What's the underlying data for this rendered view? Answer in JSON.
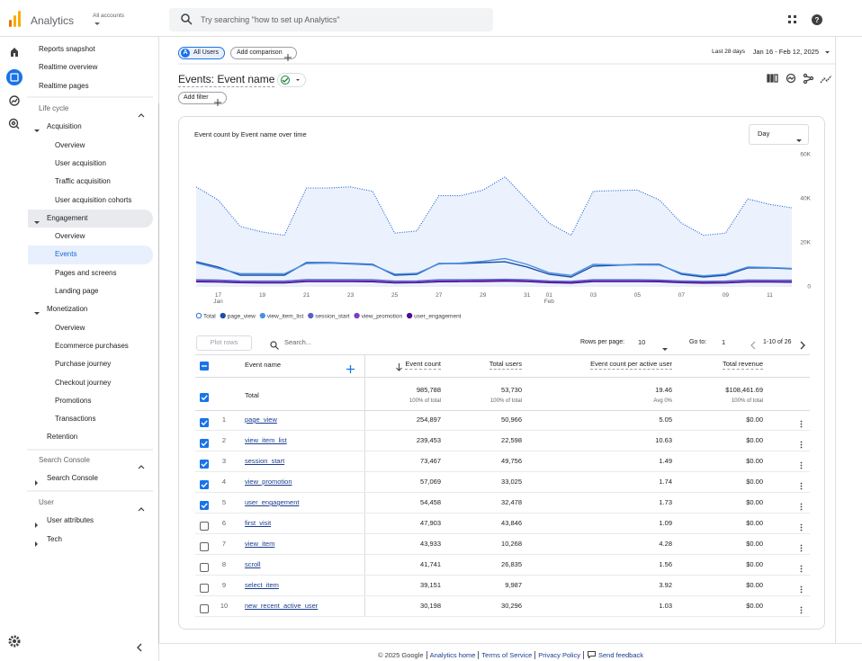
{
  "topbar": {
    "product": "Analytics",
    "account_label": "All accounts",
    "search_placeholder": "Try searching \"how to set up Analytics\""
  },
  "nav": {
    "top": [
      "Reports snapshot",
      "Realtime overview",
      "Realtime pages"
    ],
    "sections": [
      {
        "title": "Life cycle",
        "expanded": true,
        "items": [
          {
            "label": "Acquisition",
            "expanded": true,
            "children": [
              "Overview",
              "User acquisition",
              "Traffic acquisition",
              "User acquisition cohorts"
            ]
          },
          {
            "label": "Engagement",
            "expanded": true,
            "active": true,
            "active_child": 1,
            "children": [
              "Overview",
              "Events",
              "Pages and screens",
              "Landing page"
            ]
          },
          {
            "label": "Monetization",
            "expanded": true,
            "children": [
              "Overview",
              "Ecommerce purchases",
              "Purchase journey",
              "Checkout journey",
              "Promotions",
              "Transactions"
            ]
          },
          "Retention"
        ]
      },
      {
        "title": "Search Console",
        "expanded": true,
        "items": [
          {
            "label": "Search Console",
            "expanded": false
          }
        ]
      },
      {
        "title": "User",
        "expanded": true,
        "items": [
          {
            "label": "User attributes",
            "expanded": false
          },
          {
            "label": "Tech",
            "expanded": false
          }
        ]
      }
    ]
  },
  "header": {
    "segment_badge": "A",
    "segment": "All Users",
    "add_comparison": "Add comparison",
    "date_range_label": "Last 28 days",
    "date_range": "Jan 16 - Feb 12, 2025",
    "report_title": "Events: Event name",
    "add_filter": "Add filter"
  },
  "chart_data": {
    "type": "line",
    "title": "Event count by Event name over time",
    "period": "Day",
    "x": [
      null,
      "17",
      null,
      "19",
      null,
      "21",
      null,
      "23",
      null,
      "25",
      null,
      "27",
      null,
      "29",
      null,
      "31",
      "01",
      null,
      "03",
      null,
      "05",
      null,
      "07",
      null,
      "09",
      null,
      "11",
      null
    ],
    "months": [
      null,
      "Jan",
      null,
      null,
      null,
      null,
      null,
      null,
      null,
      null,
      null,
      null,
      null,
      null,
      null,
      null,
      "Feb",
      null,
      null,
      null,
      null,
      null,
      null,
      null,
      null,
      null,
      null,
      null
    ],
    "ylim": [
      0,
      60000
    ],
    "yticks": [
      0,
      {
        "value": 20000,
        "label": "20K"
      },
      {
        "value": 40000,
        "label": "40K"
      },
      {
        "value": 60000,
        "label": "60K"
      }
    ],
    "grid": false,
    "series": [
      {
        "name": "Total",
        "color": "#1a5fd0",
        "dashed": true,
        "area": true,
        "values": [
          45000,
          39000,
          27000,
          24500,
          23000,
          44500,
          44500,
          45000,
          43000,
          24000,
          25000,
          41000,
          41000,
          43500,
          49500,
          39000,
          28500,
          23000,
          43000,
          43300,
          43500,
          39000,
          28500,
          23000,
          24000,
          39500,
          37000,
          35500
        ]
      },
      {
        "name": "page_view",
        "color": "#1c4ea8",
        "values": [
          11000,
          8600,
          4900,
          4900,
          4900,
          10600,
          10600,
          10200,
          9800,
          4900,
          5300,
          10200,
          10200,
          10600,
          11000,
          8600,
          5300,
          4100,
          9000,
          9400,
          9800,
          9800,
          5300,
          4100,
          4900,
          8200,
          8200,
          7800
        ]
      },
      {
        "name": "view_item_list",
        "color": "#4a8fe2",
        "values": [
          10500,
          8000,
          5600,
          5600,
          5500,
          10200,
          10400,
          10000,
          9500,
          5400,
          5700,
          10000,
          10400,
          11200,
          12500,
          9800,
          6000,
          4800,
          9800,
          9600,
          9600,
          9500,
          5800,
          4600,
          5400,
          8600,
          8400,
          8000
        ]
      },
      {
        "name": "session_start",
        "color": "#5560c8",
        "values": [
          2800,
          2700,
          2300,
          2200,
          2200,
          2900,
          2900,
          2900,
          2800,
          2200,
          2300,
          2800,
          2800,
          2900,
          3000,
          2800,
          2300,
          2100,
          2800,
          2800,
          2800,
          2700,
          2300,
          2100,
          2200,
          2700,
          2600,
          2600
        ]
      },
      {
        "name": "view_promotion",
        "color": "#7a3fc4",
        "values": [
          2200,
          2100,
          1700,
          1600,
          1600,
          2300,
          2300,
          2300,
          2200,
          1600,
          1700,
          2200,
          2300,
          2400,
          2600,
          2300,
          1800,
          1600,
          2300,
          2300,
          2300,
          2200,
          1700,
          1600,
          1600,
          2100,
          2100,
          2000
        ]
      },
      {
        "name": "user_engagement",
        "color": "#4a0e8f",
        "values": [
          1900,
          1800,
          1500,
          1400,
          1400,
          2000,
          2000,
          2000,
          1900,
          1400,
          1500,
          1900,
          2000,
          2000,
          2200,
          2000,
          1500,
          1300,
          2000,
          2000,
          2000,
          1900,
          1500,
          1300,
          1400,
          1800,
          1800,
          1700
        ]
      }
    ]
  },
  "table": {
    "plot_rows": "Plot rows",
    "search_placeholder": "Search...",
    "rows_per_page_label": "Rows per page:",
    "rows_per_page": 10,
    "go_to_label": "Go to:",
    "go_to": 1,
    "range": "1-10 of 26",
    "columns": [
      "Event name",
      "Event count",
      "Total users",
      "Event count per active user",
      "Total revenue"
    ],
    "sort_column": 1,
    "total": {
      "label": "Total",
      "values": [
        "985,788",
        "53,730",
        "19.46",
        "$108,461.69"
      ],
      "notes": [
        "100% of total",
        "100% of total",
        "Avg 0%",
        "100% of total"
      ]
    },
    "rows": [
      {
        "n": 1,
        "checked": true,
        "cells": [
          "page_view",
          "254,897",
          "50,966",
          "5.05",
          "$0.00"
        ]
      },
      {
        "n": 2,
        "checked": true,
        "cells": [
          "view_item_list",
          "239,453",
          "22,598",
          "10.63",
          "$0.00"
        ]
      },
      {
        "n": 3,
        "checked": true,
        "cells": [
          "session_start",
          "73,467",
          "49,756",
          "1.49",
          "$0.00"
        ]
      },
      {
        "n": 4,
        "checked": true,
        "cells": [
          "view_promotion",
          "57,069",
          "33,025",
          "1.74",
          "$0.00"
        ]
      },
      {
        "n": 5,
        "checked": true,
        "cells": [
          "user_engagement",
          "54,458",
          "32,478",
          "1.73",
          "$0.00"
        ]
      },
      {
        "n": 6,
        "checked": false,
        "cells": [
          "first_visit",
          "47,903",
          "43,846",
          "1.09",
          "$0.00"
        ]
      },
      {
        "n": 7,
        "checked": false,
        "cells": [
          "view_item",
          "43,933",
          "10,268",
          "4.28",
          "$0.00"
        ]
      },
      {
        "n": 8,
        "checked": false,
        "cells": [
          "scroll",
          "41,741",
          "26,835",
          "1.56",
          "$0.00"
        ]
      },
      {
        "n": 9,
        "checked": false,
        "cells": [
          "select_item",
          "39,151",
          "9,987",
          "3.92",
          "$0.00"
        ]
      },
      {
        "n": 10,
        "checked": false,
        "cells": [
          "new_recent_active_user",
          "30,198",
          "30,296",
          "1.03",
          "$0.00"
        ]
      }
    ]
  },
  "footer": {
    "copyright": "© 2025 Google",
    "links": [
      "Analytics home",
      "Terms of Service",
      "Privacy Policy"
    ],
    "feedback": "Send feedback"
  }
}
